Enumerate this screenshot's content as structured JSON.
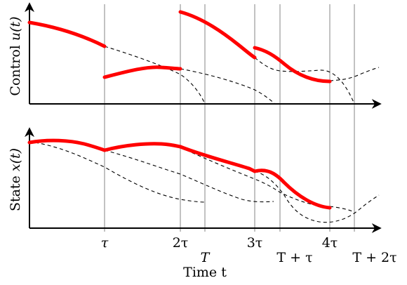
{
  "figure": {
    "top_panel": {
      "ylabel_prefix": "Control ",
      "ylabel_math": "u(t)"
    },
    "bottom_panel": {
      "ylabel_prefix": "State ",
      "ylabel_math": "x(t)"
    },
    "xlabel": "Time t",
    "ticks_row1": [
      "τ",
      "2τ",
      "3τ",
      "4τ"
    ],
    "ticks_row2": [
      "T",
      "T + τ",
      "T + 2τ"
    ]
  },
  "colors": {
    "highlight": "#ff0000",
    "axis": "#000000",
    "guide": "#9a9a9a",
    "dashed": "#000000"
  }
}
